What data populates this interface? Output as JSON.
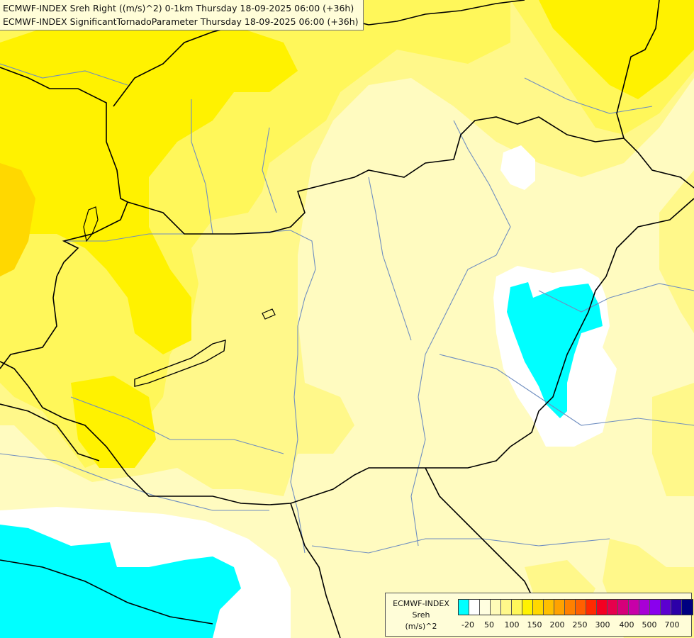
{
  "titles": {
    "line1": "ECMWF-INDEX Sreh Right ((m/s)^2) 0-1km Thursday 18-09-2025 06:00 (+36h)",
    "line2": "ECMWF-INDEX SignificantTornadoParameter Thursday 18-09-2025 06:00 (+36h)"
  },
  "legend": {
    "line1": "ECMWF-INDEX",
    "line2": "Sreh",
    "line3": "(m/s)^2",
    "colors": [
      "#00ffff",
      "#ffffff",
      "#fffee0",
      "#fffbb8",
      "#fff88a",
      "#fff75a",
      "#fff200",
      "#ffd800",
      "#ffbf00",
      "#ffa200",
      "#ff8000",
      "#ff6000",
      "#ff2a00",
      "#f40022",
      "#e6004c",
      "#d6007a",
      "#c800a8",
      "#a800d6",
      "#8a00ee",
      "#5c00d0",
      "#2c00a8",
      "#000080"
    ],
    "ticks": [
      "-20",
      "50",
      "100",
      "150",
      "200",
      "250",
      "300",
      "400",
      "500",
      "700"
    ]
  },
  "field_colors": {
    "pale": "#fffbc0",
    "light_yellow": "#fff88a",
    "yellow": "#fff75a",
    "bright_yellow": "#fff200",
    "orange": "#ffd800",
    "white": "#ffffff",
    "cyan": "#00ffff",
    "border": "#000000",
    "river": "#6f8ec0"
  }
}
